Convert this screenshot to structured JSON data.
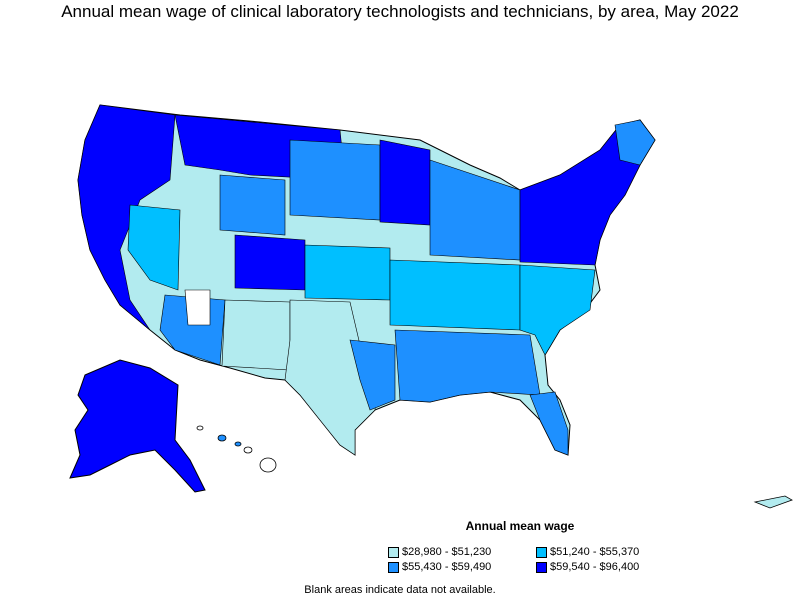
{
  "title": "Annual mean wage of clinical laboratory technologists and technicians, by area, May 2022",
  "legend": {
    "title": "Annual mean wage",
    "items": [
      {
        "label": "$28,980 - $51,230",
        "color": "#b2ebef"
      },
      {
        "label": "$51,240 - $55,370",
        "color": "#00bfff"
      },
      {
        "label": "$55,430 - $59,490",
        "color": "#1e90ff"
      },
      {
        "label": "$59,540 - $96,400",
        "color": "#0000ff"
      }
    ]
  },
  "footnote": "Blank areas indicate data not available.",
  "colors": {
    "tier1": "#b2ebef",
    "tier2": "#00bfff",
    "tier3": "#1e90ff",
    "tier4": "#0000ff",
    "blank": "#ffffff",
    "border": "#000000"
  }
}
